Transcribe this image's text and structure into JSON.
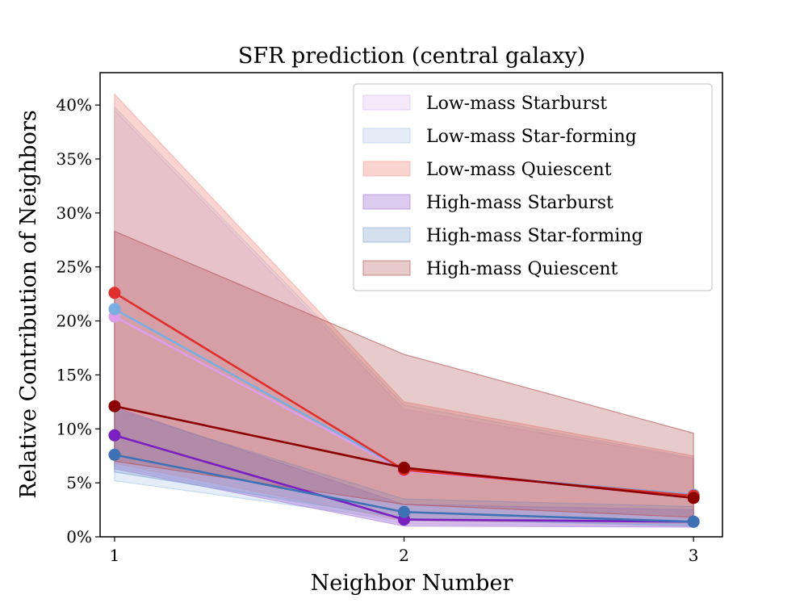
{
  "chart_data": {
    "type": "line",
    "title": "SFR prediction (central galaxy)",
    "xlabel": "Neighbor Number",
    "ylabel": "Relative Contribution of Neighbors",
    "x": [
      1,
      2,
      3
    ],
    "x_ticks": [
      "1",
      "2",
      "3"
    ],
    "xlim": [
      0.95,
      3.1
    ],
    "ylim": [
      0,
      43
    ],
    "y_ticks": [
      {
        "value": 0,
        "label": "0%"
      },
      {
        "value": 5,
        "label": "5%"
      },
      {
        "value": 10,
        "label": "10%"
      },
      {
        "value": 15,
        "label": "15%"
      },
      {
        "value": 20,
        "label": "20%"
      },
      {
        "value": 25,
        "label": "25%"
      },
      {
        "value": 30,
        "label": "30%"
      },
      {
        "value": 35,
        "label": "35%"
      },
      {
        "value": 40,
        "label": "40%"
      }
    ],
    "grid": false,
    "legend_position": "top-right",
    "series": [
      {
        "name": "Low-mass Starburst",
        "values": [
          20.4,
          6.1,
          3.9
        ],
        "lower": [
          6.5,
          1.2,
          1.0
        ],
        "upper": [
          39.5,
          11.8,
          7.2
        ],
        "line_color": "#dd9de8",
        "band_color": "#d8b6f0",
        "band_opacity": 0.3
      },
      {
        "name": "Low-mass Star-forming",
        "values": [
          21.1,
          6.2,
          3.9
        ],
        "lower": [
          5.2,
          1.5,
          1.1
        ],
        "upper": [
          39.8,
          12.2,
          7.3
        ],
        "line_color": "#7aaee0",
        "band_color": "#a9c8e8",
        "band_opacity": 0.3
      },
      {
        "name": "Low-mass Quiescent",
        "values": [
          22.6,
          6.2,
          3.8
        ],
        "lower": [
          6.8,
          1.5,
          1.2
        ],
        "upper": [
          41.0,
          12.5,
          7.5
        ],
        "line_color": "#e0302e",
        "band_color": "#f4a09a",
        "band_opacity": 0.45
      },
      {
        "name": "High-mass Starburst",
        "values": [
          9.4,
          1.6,
          1.4
        ],
        "lower": [
          6.3,
          1.0,
          0.9
        ],
        "upper": [
          12.0,
          3.0,
          2.5
        ],
        "line_color": "#7a1fc0",
        "band_color": "#a77ad8",
        "band_opacity": 0.4
      },
      {
        "name": "High-mass Star-forming",
        "values": [
          7.6,
          2.3,
          1.4
        ],
        "lower": [
          6.0,
          1.7,
          1.0
        ],
        "upper": [
          11.8,
          3.5,
          2.8
        ],
        "line_color": "#3e72b5",
        "band_color": "#86a6d2",
        "band_opacity": 0.35
      },
      {
        "name": "High-mass Quiescent",
        "values": [
          12.1,
          6.4,
          3.6
        ],
        "lower": [
          7.0,
          3.0,
          1.8
        ],
        "upper": [
          28.3,
          16.9,
          9.6
        ],
        "line_color": "#8b0000",
        "band_color": "#b14e4e",
        "band_opacity": 0.3
      }
    ]
  }
}
